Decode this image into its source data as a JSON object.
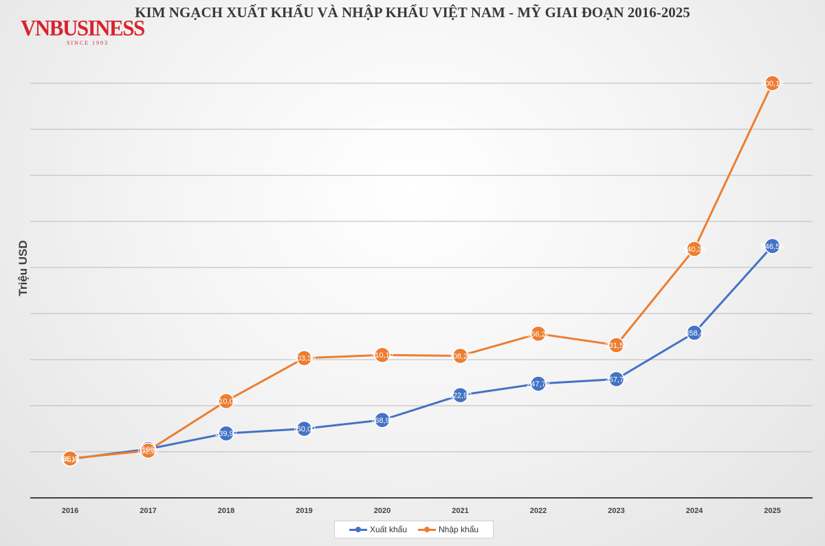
{
  "logo": {
    "word": "VNBUSINESS",
    "since": "SINCE 1993"
  },
  "colors": {
    "export": "#4472c4",
    "import": "#ed7d31",
    "grid": "#b8b8b8",
    "axis": "#404040"
  },
  "chart_data": {
    "type": "line",
    "title": "KIM NGẠCH XUẤT KHẨU VÀ NHẬP KHẨU VIỆT NAM - MỸ GIAI ĐOẠN 2016-2025",
    "xlabel": "",
    "ylabel": "Triệu USD",
    "categories": [
      "2016",
      "2017",
      "2018",
      "2019",
      "2020",
      "2021",
      "2022",
      "2023",
      "2024",
      "2025"
    ],
    "ylim": [
      0,
      1000
    ],
    "grid": true,
    "legend": "bottom",
    "series": [
      {
        "name": "Xuất khẩu",
        "values": [
          84.19,
          106,
          139.97,
          150.02,
          168.97,
          222.93,
          247.78,
          257.74,
          358.4,
          546.56
        ],
        "labels": [
          "84,19",
          "106",
          "139,97",
          "150,02",
          "168,97",
          "222,93",
          "247,78",
          "257,74",
          "358,4",
          "546,56"
        ]
      },
      {
        "name": "Nhập khẩu",
        "values": [
          85.4,
          102.37,
          210.09,
          303.38,
          310.12,
          308.27,
          356.27,
          331.54,
          540.33,
          900.14
        ],
        "labels": [
          "85,4",
          "102,37",
          "210,09",
          "303,38",
          "310,12",
          "308,27",
          "356,27",
          "331,54",
          "540,33",
          "900,14"
        ]
      }
    ]
  }
}
